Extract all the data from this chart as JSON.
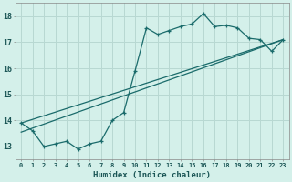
{
  "xlabel": "Humidex (Indice chaleur)",
  "ylabel": "",
  "bg_color": "#d4f0ea",
  "grid_color": "#b8d8d2",
  "line_color": "#1a6b6b",
  "xlim": [
    -0.5,
    23.5
  ],
  "ylim": [
    12.5,
    18.5
  ],
  "xticks": [
    0,
    1,
    2,
    3,
    4,
    5,
    6,
    7,
    8,
    9,
    10,
    11,
    12,
    13,
    14,
    15,
    16,
    17,
    18,
    19,
    20,
    21,
    22,
    23
  ],
  "yticks": [
    13,
    14,
    15,
    16,
    17,
    18
  ],
  "line1_x": [
    0,
    1,
    2,
    3,
    4,
    5,
    6,
    7,
    8,
    9,
    10,
    11,
    12,
    13,
    14,
    15,
    16,
    17,
    18,
    19,
    20,
    21,
    22,
    23
  ],
  "line1_y": [
    13.9,
    13.6,
    13.0,
    13.1,
    13.2,
    12.9,
    13.1,
    13.2,
    14.0,
    14.3,
    15.9,
    17.55,
    17.3,
    17.45,
    17.6,
    17.7,
    18.1,
    17.6,
    17.65,
    17.55,
    17.15,
    17.1,
    16.65,
    17.1
  ],
  "line2_x": [
    0,
    23
  ],
  "line2_y": [
    13.9,
    17.1
  ],
  "line3_x": [
    0,
    23
  ],
  "line3_y": [
    13.55,
    17.1
  ]
}
